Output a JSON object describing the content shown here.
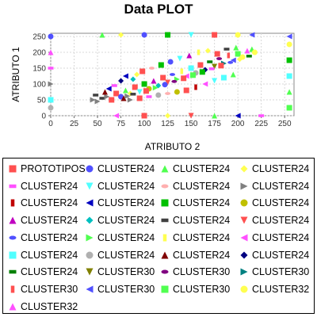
{
  "chart_data": {
    "type": "scatter",
    "title": "Data PLOT",
    "xlabel": "ATRIBUTO 2",
    "ylabel": "ATRIBUTO 1",
    "xlim": [
      0,
      260
    ],
    "ylim": [
      0,
      260
    ],
    "xticks": [
      0,
      25,
      50,
      75,
      100,
      125,
      150,
      175,
      200,
      225,
      250
    ],
    "yticks": [
      0,
      50,
      100,
      150,
      200,
      250
    ],
    "grid": true,
    "legend_position": "bottom",
    "series": [
      {
        "name": "PROTOTIPOS",
        "color": "#ff5050",
        "marker": "square"
      },
      {
        "name": "CLUSTER24",
        "color": "#5050ff",
        "marker": "circle"
      },
      {
        "name": "CLUSTER24",
        "color": "#50ff50",
        "marker": "triangle-up"
      },
      {
        "name": "CLUSTER24",
        "color": "#ffff50",
        "marker": "diamond"
      },
      {
        "name": "CLUSTER24",
        "color": "#ff50ff",
        "marker": "rect-h"
      },
      {
        "name": "CLUSTER24",
        "color": "#50ffff",
        "marker": "triangle-down"
      },
      {
        "name": "CLUSTER24",
        "color": "#ffafaf",
        "marker": "ellipse"
      },
      {
        "name": "CLUSTER24",
        "color": "#808080",
        "marker": "triangle-right"
      },
      {
        "name": "CLUSTER24",
        "color": "#c00000",
        "marker": "rect-v"
      },
      {
        "name": "CLUSTER24",
        "color": "#0000c0",
        "marker": "triangle-left"
      },
      {
        "name": "CLUSTER24",
        "color": "#00c000",
        "marker": "square"
      },
      {
        "name": "CLUSTER24",
        "color": "#c0c000",
        "marker": "circle"
      },
      {
        "name": "CLUSTER24",
        "color": "#c000c0",
        "marker": "triangle-up"
      },
      {
        "name": "CLUSTER24",
        "color": "#00c0c0",
        "marker": "diamond"
      },
      {
        "name": "CLUSTER24",
        "color": "#404040",
        "marker": "rect-h"
      },
      {
        "name": "CLUSTER24",
        "color": "#ff5050",
        "marker": "triangle-down"
      },
      {
        "name": "CLUSTER24",
        "color": "#5050ff",
        "marker": "ellipse"
      },
      {
        "name": "CLUSTER24",
        "color": "#50ff50",
        "marker": "triangle-right"
      },
      {
        "name": "CLUSTER24",
        "color": "#ffff50",
        "marker": "rect-v"
      },
      {
        "name": "CLUSTER24",
        "color": "#ff50ff",
        "marker": "triangle-left"
      },
      {
        "name": "CLUSTER24",
        "color": "#50ffff",
        "marker": "square"
      },
      {
        "name": "CLUSTER24",
        "color": "#b0b0b0",
        "marker": "circle"
      },
      {
        "name": "CLUSTER24",
        "color": "#800000",
        "marker": "triangle-up"
      },
      {
        "name": "CLUSTER24",
        "color": "#000080",
        "marker": "diamond"
      },
      {
        "name": "CLUSTER24",
        "color": "#008000",
        "marker": "rect-h"
      },
      {
        "name": "CLUSTER30",
        "color": "#808000",
        "marker": "triangle-down"
      },
      {
        "name": "CLUSTER30",
        "color": "#800080",
        "marker": "ellipse"
      },
      {
        "name": "CLUSTER30",
        "color": "#008080",
        "marker": "triangle-right"
      },
      {
        "name": "CLUSTER30",
        "color": "#ff5050",
        "marker": "rect-v"
      },
      {
        "name": "CLUSTER30",
        "color": "#5050ff",
        "marker": "triangle-left"
      },
      {
        "name": "CLUSTER30",
        "color": "#50ff50",
        "marker": "square"
      },
      {
        "name": "CLUSTER32",
        "color": "#ffff50",
        "marker": "circle"
      },
      {
        "name": "CLUSTER32",
        "color": "#ff50ff",
        "marker": "triangle-up"
      }
    ],
    "points": [
      {
        "x": 45,
        "y": 50,
        "s": 7
      },
      {
        "x": 50,
        "y": 45,
        "s": 7
      },
      {
        "x": 55,
        "y": 55,
        "s": 14
      },
      {
        "x": 60,
        "y": 60,
        "s": 7
      },
      {
        "x": 48,
        "y": 65,
        "s": 14
      },
      {
        "x": 65,
        "y": 50,
        "s": 0
      },
      {
        "x": 70,
        "y": 70,
        "s": 0
      },
      {
        "x": 58,
        "y": 75,
        "s": 22
      },
      {
        "x": 75,
        "y": 60,
        "s": 1
      },
      {
        "x": 80,
        "y": 80,
        "s": 2
      },
      {
        "x": 85,
        "y": 70,
        "s": 3
      },
      {
        "x": 90,
        "y": 90,
        "s": 0
      },
      {
        "x": 62,
        "y": 85,
        "s": 9
      },
      {
        "x": 68,
        "y": 95,
        "s": 4
      },
      {
        "x": 95,
        "y": 75,
        "s": 5
      },
      {
        "x": 100,
        "y": 100,
        "s": 10
      },
      {
        "x": 105,
        "y": 85,
        "s": 11
      },
      {
        "x": 110,
        "y": 110,
        "s": 12
      },
      {
        "x": 115,
        "y": 95,
        "s": 13
      },
      {
        "x": 120,
        "y": 120,
        "s": 0
      },
      {
        "x": 125,
        "y": 105,
        "s": 15
      },
      {
        "x": 130,
        "y": 130,
        "s": 16
      },
      {
        "x": 135,
        "y": 115,
        "s": 17
      },
      {
        "x": 140,
        "y": 140,
        "s": 18
      },
      {
        "x": 145,
        "y": 125,
        "s": 19
      },
      {
        "x": 150,
        "y": 150,
        "s": 20
      },
      {
        "x": 155,
        "y": 135,
        "s": 21
      },
      {
        "x": 160,
        "y": 160,
        "s": 0
      },
      {
        "x": 165,
        "y": 145,
        "s": 23
      },
      {
        "x": 170,
        "y": 170,
        "s": 24
      },
      {
        "x": 175,
        "y": 155,
        "s": 25
      },
      {
        "x": 180,
        "y": 180,
        "s": 26
      },
      {
        "x": 185,
        "y": 165,
        "s": 27
      },
      {
        "x": 190,
        "y": 190,
        "s": 28
      },
      {
        "x": 195,
        "y": 175,
        "s": 29
      },
      {
        "x": 200,
        "y": 195,
        "s": 30
      },
      {
        "x": 205,
        "y": 185,
        "s": 31
      },
      {
        "x": 210,
        "y": 205,
        "s": 32
      },
      {
        "x": 215,
        "y": 210,
        "s": 2
      },
      {
        "x": 75,
        "y": 110,
        "s": 23
      },
      {
        "x": 80,
        "y": 125,
        "s": 9
      },
      {
        "x": 88,
        "y": 115,
        "s": 13
      },
      {
        "x": 92,
        "y": 130,
        "s": 3
      },
      {
        "x": 98,
        "y": 140,
        "s": 0
      },
      {
        "x": 108,
        "y": 150,
        "s": 6
      },
      {
        "x": 118,
        "y": 160,
        "s": 10
      },
      {
        "x": 128,
        "y": 170,
        "s": 1
      },
      {
        "x": 138,
        "y": 180,
        "s": 5
      },
      {
        "x": 148,
        "y": 190,
        "s": 12
      },
      {
        "x": 158,
        "y": 200,
        "s": 18
      },
      {
        "x": 168,
        "y": 205,
        "s": 3
      },
      {
        "x": 178,
        "y": 195,
        "s": 0
      },
      {
        "x": 188,
        "y": 210,
        "s": 14
      },
      {
        "x": 198,
        "y": 215,
        "s": 2
      },
      {
        "x": 85,
        "y": 50,
        "s": 7
      },
      {
        "x": 95,
        "y": 55,
        "s": 0
      },
      {
        "x": 105,
        "y": 60,
        "s": 4
      },
      {
        "x": 115,
        "y": 65,
        "s": 21
      },
      {
        "x": 125,
        "y": 70,
        "s": 6
      },
      {
        "x": 135,
        "y": 75,
        "s": 11
      },
      {
        "x": 145,
        "y": 80,
        "s": 0
      },
      {
        "x": 155,
        "y": 90,
        "s": 8
      },
      {
        "x": 165,
        "y": 100,
        "s": 19
      },
      {
        "x": 175,
        "y": 110,
        "s": 5
      },
      {
        "x": 185,
        "y": 120,
        "s": 20
      },
      {
        "x": 195,
        "y": 130,
        "s": 2
      },
      {
        "x": 78,
        "y": 55,
        "s": 22
      },
      {
        "x": 82,
        "y": 62,
        "s": 7
      },
      {
        "x": 88,
        "y": 68,
        "s": 14
      },
      {
        "x": 102,
        "y": 78,
        "s": 0
      },
      {
        "x": 112,
        "y": 88,
        "s": 17
      },
      {
        "x": 122,
        "y": 98,
        "s": 1
      },
      {
        "x": 132,
        "y": 108,
        "s": 26
      },
      {
        "x": 142,
        "y": 118,
        "s": 0
      },
      {
        "x": 152,
        "y": 128,
        "s": 30
      },
      {
        "x": 162,
        "y": 138,
        "s": 10
      },
      {
        "x": 172,
        "y": 148,
        "s": 4
      },
      {
        "x": 182,
        "y": 158,
        "s": 0
      },
      {
        "x": 192,
        "y": 168,
        "s": 16
      },
      {
        "x": 202,
        "y": 178,
        "s": 3
      },
      {
        "x": 212,
        "y": 188,
        "s": 24
      },
      {
        "x": 218,
        "y": 200,
        "s": 31
      },
      {
        "x": 100,
        "y": 0,
        "s": 0
      },
      {
        "x": 125,
        "y": 0,
        "s": 3
      },
      {
        "x": 150,
        "y": 0,
        "s": 15
      },
      {
        "x": 175,
        "y": 0,
        "s": 2
      },
      {
        "x": 200,
        "y": 0,
        "s": 9
      },
      {
        "x": 70,
        "y": 0,
        "s": 19
      },
      {
        "x": 225,
        "y": 0,
        "s": 4
      },
      {
        "x": 55,
        "y": 255,
        "s": 2
      },
      {
        "x": 75,
        "y": 255,
        "s": 3
      },
      {
        "x": 100,
        "y": 255,
        "s": 1
      },
      {
        "x": 125,
        "y": 255,
        "s": 10
      },
      {
        "x": 150,
        "y": 255,
        "s": 5
      },
      {
        "x": 175,
        "y": 255,
        "s": 0
      },
      {
        "x": 200,
        "y": 255,
        "s": 31
      },
      {
        "x": 215,
        "y": 255,
        "s": 29
      },
      {
        "x": 0,
        "y": 50,
        "s": 20
      },
      {
        "x": 0,
        "y": 100,
        "s": 7
      },
      {
        "x": 0,
        "y": 150,
        "s": 4
      },
      {
        "x": 0,
        "y": 200,
        "s": 32
      },
      {
        "x": 0,
        "y": 250,
        "s": 1
      },
      {
        "x": 0,
        "y": 25,
        "s": 21
      },
      {
        "x": 255,
        "y": 25,
        "s": 30
      },
      {
        "x": 255,
        "y": 75,
        "s": 2
      },
      {
        "x": 255,
        "y": 125,
        "s": 20
      },
      {
        "x": 255,
        "y": 175,
        "s": 10
      },
      {
        "x": 255,
        "y": 225,
        "s": 31
      },
      {
        "x": 255,
        "y": 250,
        "s": 29
      }
    ]
  }
}
